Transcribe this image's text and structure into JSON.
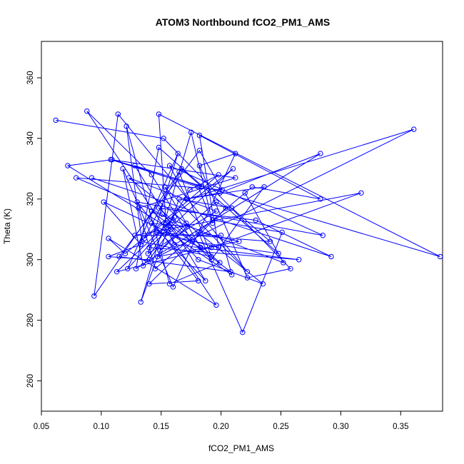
{
  "chart_data": {
    "type": "line",
    "title": "ATOM3 Northbound fCO2_PM1_AMS",
    "xlabel": "fCO2_PM1_AMS",
    "ylabel": "Theta (K)",
    "xlim": [
      0.05,
      0.385
    ],
    "ylim": [
      250,
      372
    ],
    "x_ticks": [
      0.05,
      0.1,
      0.15,
      0.2,
      0.25,
      0.3,
      0.35
    ],
    "x_tick_labels": [
      "0.05",
      "0.10",
      "0.15",
      "0.20",
      "0.25",
      "0.30",
      "0.35"
    ],
    "y_ticks": [
      260,
      280,
      300,
      320,
      340,
      360
    ],
    "y_tick_labels": [
      "260",
      "280",
      "300",
      "320",
      "340",
      "360"
    ],
    "grid": false,
    "series_color": "#0000ff",
    "marker": "open-circle",
    "connected": true,
    "x": [
      0.062,
      0.152,
      0.258,
      0.222,
      0.182,
      0.212,
      0.16,
      0.118,
      0.135,
      0.174,
      0.198,
      0.12,
      0.106,
      0.196,
      0.088,
      0.142,
      0.176,
      0.248,
      0.148,
      0.129,
      0.283,
      0.199,
      0.171,
      0.236,
      0.192,
      0.151,
      0.079,
      0.201,
      0.182,
      0.115,
      0.208,
      0.142,
      0.16,
      0.252,
      0.22,
      0.145,
      0.131,
      0.212,
      0.108,
      0.181,
      0.193,
      0.175,
      0.133,
      0.165,
      0.209,
      0.241,
      0.146,
      0.198,
      0.182,
      0.283,
      0.226,
      0.193,
      0.251,
      0.218,
      0.181,
      0.215,
      0.147,
      0.361,
      0.172,
      0.157,
      0.285,
      0.13,
      0.181,
      0.14,
      0.204,
      0.196,
      0.149,
      0.171,
      0.172,
      0.142,
      0.187,
      0.128,
      0.184,
      0.167,
      0.094,
      0.114,
      0.222,
      0.153,
      0.183,
      0.102,
      0.133,
      0.133,
      0.106,
      0.14,
      0.158,
      0.072,
      0.109,
      0.383,
      0.148,
      0.154,
      0.181,
      0.235,
      0.123,
      0.196,
      0.139,
      0.164,
      0.122,
      0.161,
      0.113,
      0.192,
      0.317,
      0.128,
      0.2,
      0.209,
      0.156,
      0.161,
      0.265,
      0.14,
      0.21,
      0.136,
      0.165,
      0.192,
      0.134,
      0.121,
      0.157,
      0.199,
      0.148,
      0.229,
      0.292,
      0.092
    ],
    "y": [
      346,
      340,
      297,
      294,
      331,
      335,
      291,
      330,
      298,
      323,
      328,
      302,
      307,
      285,
      349,
      328,
      306,
      302,
      337,
      297,
      335,
      322,
      320,
      324,
      300,
      315,
      327,
      323,
      336,
      301,
      296,
      316,
      313,
      299,
      322,
      297,
      317,
      327,
      333,
      324,
      312,
      342,
      286,
      320,
      317,
      306,
      309,
      304,
      341,
      320,
      324,
      313,
      309,
      276,
      309,
      306,
      301,
      343,
      320,
      331,
      308,
      319,
      293,
      292,
      317,
      319,
      303,
      312,
      311,
      312,
      293,
      331,
      324,
      330,
      288,
      348,
      296,
      324,
      304,
      319,
      305,
      305,
      301,
      300,
      310,
      331,
      333,
      301,
      348,
      312,
      300,
      292,
      327,
      316,
      302,
      335,
      297,
      314,
      296,
      304,
      322,
      308,
      308,
      295,
      309,
      305,
      300,
      304,
      330,
      307,
      329,
      301,
      306,
      344,
      292,
      299,
      317,
      313,
      301,
      327
    ]
  }
}
